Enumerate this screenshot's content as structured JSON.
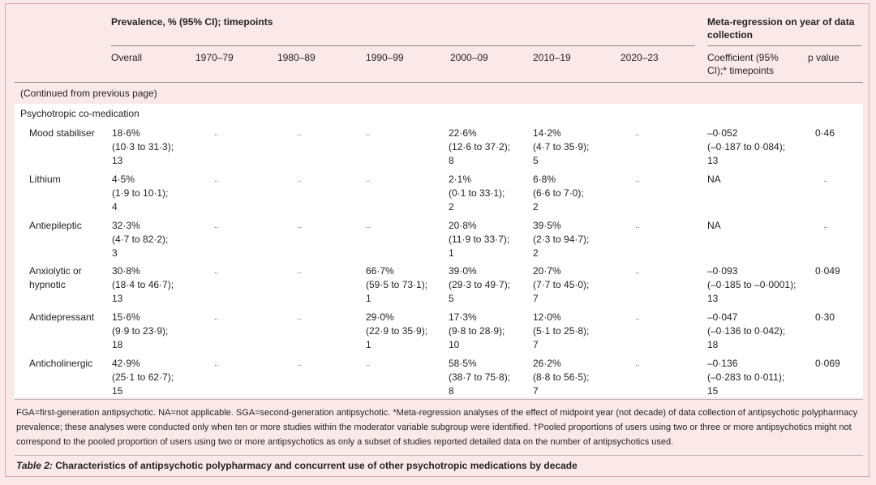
{
  "header": {
    "group_prevalence": "Prevalence, % (95% CI); timepoints",
    "group_metareg": "Meta-regression on year of data collection",
    "columns": [
      "Overall",
      "1970–79",
      "1980–89",
      "1990–99",
      "2000–09",
      "2010–19",
      "2020–23"
    ],
    "coef_label": "Coefficient (95% CI);* timepoints",
    "pvalue_label": "p value"
  },
  "continued_text": "(Continued from previous page)",
  "section_title": "Psychotropic co-medication",
  "rows": [
    {
      "label": "Mood stabiliser",
      "overall": "18·6%\n(10·3 to 31·3);\n13",
      "d1970": "..",
      "d1980": "..",
      "d1990": "..",
      "d2000": "22·6%\n(12·6 to 37·2);\n8",
      "d2010": "14·2%\n(4·7 to 35·9);\n5",
      "d2020": "..",
      "coef": "–0·052\n(–0·187 to 0·084);\n13",
      "p": "0·46"
    },
    {
      "label": "Lithium",
      "overall": "4·5%\n(1·9 to 10·1);\n4",
      "d1970": "..",
      "d1980": "..",
      "d1990": "..",
      "d2000": "2·1%\n(0·1 to 33·1);\n2",
      "d2010": "6·8%\n(6·6 to 7·0);\n2",
      "d2020": "..",
      "coef": "NA",
      "p": ".."
    },
    {
      "label": "Antiepileptic",
      "overall": "32·3%\n(4·7 to 82·2);\n3",
      "d1970": "..",
      "d1980": "..",
      "d1990": "..",
      "d2000": "20·8%\n(11·9 to 33·7);\n1",
      "d2010": "39·5%\n(2·3 to 94·7);\n2",
      "d2020": "..",
      "coef": "NA",
      "p": ".."
    },
    {
      "label": "Anxiolytic or\nhypnotic",
      "overall": "30·8%\n(18·4 to 46·7);\n13",
      "d1970": "..",
      "d1980": "..",
      "d1990": "66·7%\n(59·5 to 73·1);\n1",
      "d2000": "39·0%\n(29·3 to 49·7);\n5",
      "d2010": "20·7%\n(7·7 to 45·0);\n7",
      "d2020": "..",
      "coef": "–0·093\n(–0·185 to –0·0001);\n13",
      "p": "0·049"
    },
    {
      "label": "Antidepressant",
      "overall": "15·6%\n(9·9 to 23·9);\n18",
      "d1970": "..",
      "d1980": "..",
      "d1990": "29·0%\n(22·9 to 35·9);\n1",
      "d2000": "17·3%\n(9·8 to 28·9);\n10",
      "d2010": "12·0%\n(5·1 to 25·8);\n7",
      "d2020": "..",
      "coef": "–0·047\n(–0·136 to 0·042);\n18",
      "p": "0·30"
    },
    {
      "label": "Anticholinergic",
      "overall": "42·9%\n(25·1 to 62·7);\n15",
      "d1970": "..",
      "d1980": "..",
      "d1990": "..",
      "d2000": "58·5%\n(38·7 to 75·8);\n8",
      "d2010": "26·2%\n(8·8 to 56·5);\n7",
      "d2020": "..",
      "coef": "–0·136\n(–0·283 to 0·011);\n15",
      "p": "0·069"
    }
  ],
  "footnote": "FGA=first-generation antipsychotic. NA=not applicable. SGA=second-generation antipsychotic. *Meta-regression analyses of the effect of midpoint year (not decade) of data collection of antipsychotic polypharmacy prevalence; these analyses were conducted only when ten or more studies within the moderator variable subgroup were identified. †Pooled proportions of users using two or three or more antipsychotics might not correspond to the pooled proportion of users using two or more antipsychotics as only a subset of studies reported detailed data on the number of antipsychotics used.",
  "caption": {
    "label": "Table 2:",
    "text": " Characteristics of antipsychotic polypharmacy and concurrent use of other psychotropic medications by decade"
  }
}
